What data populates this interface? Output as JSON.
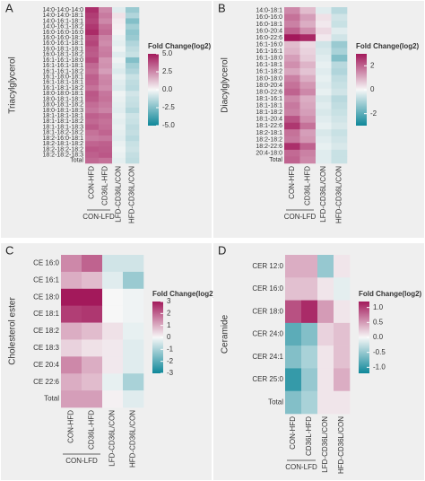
{
  "chart_data": [
    {
      "type": "heatmap",
      "panel": "A",
      "ylabel": "Triacylglycerol",
      "legend_title": "Fold Change(log2)",
      "group_label": "CON-LFD",
      "columns": [
        "CON-HFD",
        "CD36L-HFD",
        "LFD-CD36L/CON",
        "HFD-CD36L/CON"
      ],
      "rows": [
        "14:0-14:0-14:0",
        "14:0-14:0-18:1",
        "14:0-16:1-18:1",
        "14:0-16:1-18:2",
        "16:0-16:0-16:0",
        "16:0-16:0-18:1",
        "16:0-16:1-18:1",
        "16:0-18:1-18:1",
        "16:0-18:1-18:2",
        "16:1-16:1-18:0",
        "16:1-16:1-18:1",
        "16:1-16:1-18:2",
        "16:1-18:0-18:1",
        "16:1-18:1-18:1",
        "16:1-18:1-18:2",
        "18:0-18:0-18:1",
        "18:0-18:1-18:1",
        "18:0-18:1-18:2",
        "18:0-18:1-18:3",
        "18:1-18:1-18:1",
        "18:1-18:1-18:2",
        "18:1-18:1-18:3",
        "18:1-18:2-18:2",
        "18:2-16:0-18:1",
        "18:2-18:1-18:2",
        "18:2-18:2-18:2",
        "18:2-18:2-18:3",
        "Total"
      ],
      "values": [
        [
          4.5,
          2.5,
          -0.5,
          -2.0
        ],
        [
          4.2,
          2.8,
          0.5,
          -1.5
        ],
        [
          4.0,
          2.5,
          0.3,
          -2.5
        ],
        [
          4.3,
          3.0,
          0.2,
          -1.8
        ],
        [
          4.6,
          3.2,
          0.1,
          -2.2
        ],
        [
          3.8,
          2.6,
          -0.3,
          -2.0
        ],
        [
          4.0,
          2.4,
          -0.4,
          -1.5
        ],
        [
          3.6,
          2.7,
          -0.2,
          -1.2
        ],
        [
          3.5,
          2.8,
          -0.5,
          -1.0
        ],
        [
          3.8,
          2.2,
          -0.2,
          -2.5
        ],
        [
          3.2,
          2.3,
          -0.4,
          -1.8
        ],
        [
          3.0,
          2.0,
          -0.6,
          -1.5
        ],
        [
          3.4,
          2.5,
          -0.3,
          -1.0
        ],
        [
          3.3,
          2.6,
          -0.5,
          -1.2
        ],
        [
          3.0,
          2.4,
          -0.6,
          -1.3
        ],
        [
          3.6,
          2.9,
          -0.2,
          -0.8
        ],
        [
          3.5,
          3.0,
          -0.3,
          -1.0
        ],
        [
          3.1,
          2.8,
          -0.4,
          -1.1
        ],
        [
          2.9,
          2.6,
          -0.5,
          -1.4
        ],
        [
          3.4,
          3.2,
          -0.3,
          -0.9
        ],
        [
          3.2,
          3.0,
          -0.4,
          -1.0
        ],
        [
          3.5,
          3.1,
          -0.3,
          -1.2
        ],
        [
          3.0,
          3.3,
          -0.4,
          -1.1
        ],
        [
          2.8,
          2.9,
          -0.5,
          -1.3
        ],
        [
          3.3,
          3.4,
          -0.3,
          -1.0
        ],
        [
          3.6,
          3.5,
          -0.2,
          -0.9
        ],
        [
          3.4,
          3.6,
          -0.3,
          -1.1
        ],
        [
          3.2,
          3.0,
          -0.4,
          -1.2
        ]
      ],
      "clim": [
        -5,
        5
      ],
      "cticks": [
        {
          "value": 5,
          "label": "5.0"
        },
        {
          "value": 2.5,
          "label": "2.5"
        },
        {
          "value": 0,
          "label": "0.0"
        },
        {
          "value": -2.5,
          "label": "-2.5"
        },
        {
          "value": -5,
          "label": "-5.0"
        }
      ],
      "colors": [
        "#0e8799",
        "#f7f7f7",
        "#a3195b"
      ]
    },
    {
      "type": "heatmap",
      "panel": "B",
      "ylabel": "Diacylglycerol",
      "legend_title": "Fold Change(log2)",
      "group_label": "CON-LFD",
      "columns": [
        "CON-HFD",
        "CD36L-HFD",
        "LFD-CD36L/CON",
        "HFD-CD36L/CON"
      ],
      "rows": [
        "14:0-18:1",
        "16:0-16:0",
        "16:0-18:1",
        "16:0-20:4",
        "16:0-22:6",
        "16:1-16:0",
        "16:1-16:1",
        "16:1-18:0",
        "16:1-18:1",
        "16:1-18:2",
        "18:0-18:0",
        "18:0-20:4",
        "18:0-22:6",
        "18:1-16:1",
        "18:1-18:1",
        "18:1-18:2",
        "18:1-20:4",
        "18:1-22:6",
        "18:2-18:1",
        "18:2-18:2",
        "18:2-22:6",
        "20:4-18:0",
        "Total"
      ],
      "values": [
        [
          1.5,
          0.8,
          -0.3,
          -0.8
        ],
        [
          1.8,
          1.2,
          0.3,
          -0.5
        ],
        [
          1.6,
          1.0,
          0.2,
          -0.6
        ],
        [
          2.0,
          1.4,
          0.4,
          -0.3
        ],
        [
          3.0,
          2.8,
          0.2,
          -0.5
        ],
        [
          0.8,
          0.4,
          -0.5,
          -1.2
        ],
        [
          0.9,
          0.5,
          -0.4,
          -1.0
        ],
        [
          1.2,
          0.6,
          -0.3,
          -1.5
        ],
        [
          1.4,
          0.9,
          -0.2,
          -0.8
        ],
        [
          1.1,
          0.7,
          -0.3,
          -0.9
        ],
        [
          1.6,
          1.0,
          -0.2,
          -0.7
        ],
        [
          1.8,
          1.3,
          -0.3,
          -0.6
        ],
        [
          2.0,
          1.5,
          -0.2,
          -0.5
        ],
        [
          1.5,
          1.0,
          -0.4,
          -0.8
        ],
        [
          1.7,
          1.1,
          -0.3,
          -0.7
        ],
        [
          1.6,
          1.2,
          -0.4,
          -0.6
        ],
        [
          2.2,
          1.4,
          -0.3,
          -0.5
        ],
        [
          2.6,
          1.8,
          -0.2,
          -0.4
        ],
        [
          1.8,
          1.2,
          -0.4,
          -0.6
        ],
        [
          1.7,
          1.3,
          -0.3,
          -0.5
        ],
        [
          2.7,
          2.0,
          -0.2,
          -0.4
        ],
        [
          1.9,
          1.6,
          -0.3,
          -0.6
        ],
        [
          2.0,
          1.5,
          -0.3,
          -0.6
        ]
      ],
      "clim": [
        -3,
        3
      ],
      "cticks": [
        2,
        0,
        -2
      ],
      "colors": [
        "#0e8799",
        "#f7f7f7",
        "#a3195b"
      ]
    },
    {
      "type": "heatmap",
      "panel": "C",
      "ylabel": "Cholesterol ester",
      "legend_title": "Fold Change(log2)",
      "group_label": "CON-LFD",
      "columns": [
        "CON-HFD",
        "CD36L-HFD",
        "LFD-CD36L/CON",
        "HFD-CD36L/CON"
      ],
      "rows": [
        "CE 16:0",
        "CE 16:1",
        "CE 18:0",
        "CE 18:1",
        "CE 18:2",
        "CE 18:3",
        "CE 20:4",
        "CE 22:6",
        "Total"
      ],
      "values": [
        [
          1.5,
          2.0,
          -0.5,
          -0.5
        ],
        [
          1.0,
          0.8,
          -0.3,
          -1.2
        ],
        [
          3.0,
          3.2,
          0.0,
          -0.1
        ],
        [
          2.5,
          2.6,
          0.0,
          -0.1
        ],
        [
          1.0,
          0.8,
          0.3,
          -0.2
        ],
        [
          0.5,
          0.3,
          0.2,
          -0.3
        ],
        [
          1.5,
          1.0,
          0.2,
          -0.3
        ],
        [
          1.0,
          0.8,
          -0.2,
          -1.0
        ],
        [
          1.2,
          1.2,
          0.1,
          -0.3
        ]
      ],
      "clim": [
        -3,
        3
      ],
      "cticks": [
        3,
        2,
        1,
        0,
        -1,
        -2,
        -3
      ],
      "colors": [
        "#0e8799",
        "#f7f7f7",
        "#a3195b"
      ]
    },
    {
      "type": "heatmap",
      "panel": "D",
      "ylabel": "Ceramide",
      "legend_title": "Fold Change(log2)",
      "group_label": "CON-LFD",
      "columns": [
        "CON-HFD",
        "CD36L-HFD",
        "LFD-CD36L/CON",
        "HFD-CD36L/CON"
      ],
      "rows": [
        "CER 12:0",
        "CER 16:0",
        "CER 18:0",
        "CER 24:0",
        "CER 24:1",
        "CER 25:0",
        "Total"
      ],
      "values": [
        [
          0.4,
          0.4,
          -0.5,
          0.1
        ],
        [
          0.3,
          0.3,
          0.1,
          -0.1
        ],
        [
          0.9,
          1.1,
          0.5,
          0.1
        ],
        [
          -0.8,
          -0.6,
          0.2,
          0.3
        ],
        [
          -0.6,
          -0.4,
          0.1,
          0.3
        ],
        [
          -1.0,
          -0.5,
          0.1,
          0.4
        ],
        [
          -0.6,
          -0.4,
          0.1,
          0.1
        ]
      ],
      "clim": [
        -1.2,
        1.2
      ],
      "cticks": [
        {
          "value": 1,
          "label": "1.0"
        },
        {
          "value": 0.5,
          "label": "0.5"
        },
        {
          "value": 0,
          "label": "0.0"
        },
        {
          "value": -0.5,
          "label": "-0.5"
        },
        {
          "value": -1,
          "label": "-1.0"
        }
      ],
      "colors": [
        "#0e8799",
        "#f7f7f7",
        "#a3195b"
      ]
    }
  ]
}
